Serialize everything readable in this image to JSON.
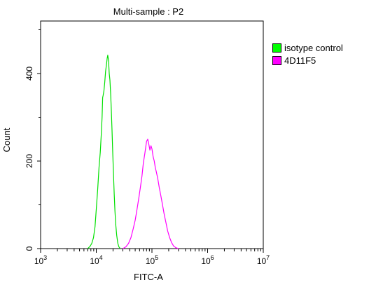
{
  "chart_data": {
    "type": "line",
    "title": "Multi-sample : P2",
    "xlabel": "FITC-A",
    "ylabel": "Count",
    "x_scale": "log",
    "xlim": [
      1000,
      10000000
    ],
    "ylim": [
      0,
      520
    ],
    "x_ticks": [
      {
        "value": 1000,
        "base": "10",
        "exp": "3"
      },
      {
        "value": 10000,
        "base": "10",
        "exp": "4"
      },
      {
        "value": 100000,
        "base": "10",
        "exp": "5"
      },
      {
        "value": 1000000,
        "base": "10",
        "exp": "6"
      },
      {
        "value": 10000000,
        "base": "10",
        "exp": "7"
      }
    ],
    "y_ticks": [
      {
        "value": 0,
        "label": "0"
      },
      {
        "value": 200,
        "label": "200"
      },
      {
        "value": 400,
        "label": "400"
      }
    ],
    "legend_position": "right",
    "series": [
      {
        "name": "isotype control",
        "color": "#00e000",
        "points": [
          [
            7000,
            0
          ],
          [
            7700,
            5
          ],
          [
            8300,
            12
          ],
          [
            8900,
            25
          ],
          [
            9500,
            50
          ],
          [
            10000,
            90
          ],
          [
            10600,
            135
          ],
          [
            11200,
            185
          ],
          [
            11800,
            220
          ],
          [
            12300,
            260
          ],
          [
            12700,
            300
          ],
          [
            13000,
            345
          ],
          [
            13300,
            350
          ],
          [
            13700,
            360
          ],
          [
            14200,
            380
          ],
          [
            14700,
            405
          ],
          [
            15200,
            420
          ],
          [
            15700,
            435
          ],
          [
            16100,
            442
          ],
          [
            16600,
            430
          ],
          [
            17100,
            400
          ],
          [
            17600,
            385
          ],
          [
            18100,
            355
          ],
          [
            18600,
            320
          ],
          [
            19200,
            270
          ],
          [
            19800,
            215
          ],
          [
            20400,
            170
          ],
          [
            21000,
            125
          ],
          [
            21700,
            85
          ],
          [
            22400,
            55
          ],
          [
            23300,
            30
          ],
          [
            24400,
            12
          ],
          [
            25500,
            4
          ],
          [
            27000,
            0
          ]
        ]
      },
      {
        "name": "4D11F5",
        "color": "#ff00ff",
        "points": [
          [
            30000,
            0
          ],
          [
            34000,
            4
          ],
          [
            38000,
            12
          ],
          [
            42000,
            25
          ],
          [
            46000,
            45
          ],
          [
            50000,
            65
          ],
          [
            54000,
            90
          ],
          [
            58000,
            115
          ],
          [
            62000,
            140
          ],
          [
            66000,
            165
          ],
          [
            70000,
            195
          ],
          [
            75000,
            220
          ],
          [
            80000,
            245
          ],
          [
            84000,
            250
          ],
          [
            88000,
            238
          ],
          [
            92000,
            225
          ],
          [
            96000,
            235
          ],
          [
            100000,
            228
          ],
          [
            105000,
            210
          ],
          [
            110000,
            200
          ],
          [
            115000,
            185
          ],
          [
            120000,
            175
          ],
          [
            127000,
            160
          ],
          [
            135000,
            140
          ],
          [
            145000,
            120
          ],
          [
            155000,
            100
          ],
          [
            165000,
            80
          ],
          [
            178000,
            60
          ],
          [
            192000,
            40
          ],
          [
            208000,
            25
          ],
          [
            225000,
            14
          ],
          [
            245000,
            6
          ],
          [
            270000,
            2
          ],
          [
            300000,
            0
          ]
        ]
      }
    ]
  }
}
